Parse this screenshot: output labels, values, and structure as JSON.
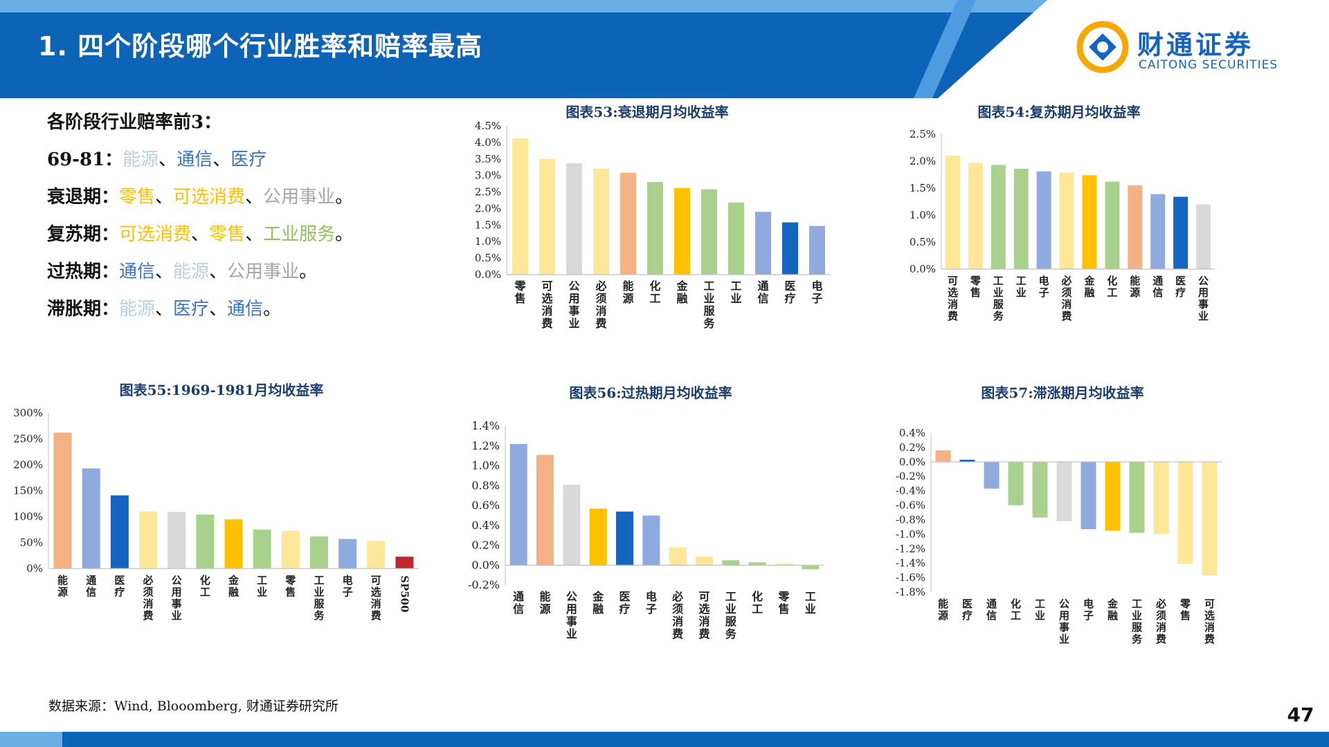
{
  "header": {
    "title": "1. 四个阶段哪个行业胜率和赔率最高"
  },
  "logo": {
    "cn": "财通证券",
    "en": "CAITONG SECURITIES"
  },
  "colors": {
    "brand_blue": "#0d63b5",
    "light_blue": "#6aaee6",
    "text_yellow": "#ffc000",
    "text_green": "#92c05a",
    "text_gray": "#a6a6a6",
    "text_lightblue": "#b4cfe9",
    "text_blue": "#3873c6"
  },
  "summary": {
    "heading": "各阶段行业赔率前3：",
    "rows": [
      {
        "label": "69-81：",
        "items": [
          {
            "text": "能源",
            "color": "#b4cfe9"
          },
          {
            "text": "通信",
            "color": "#3873c6"
          },
          {
            "text": "医疗",
            "color": "#3873c6"
          }
        ],
        "end": ""
      },
      {
        "label": "衰退期：",
        "items": [
          {
            "text": "零售",
            "color": "#ffc000"
          },
          {
            "text": "可选消费",
            "color": "#ffc000"
          },
          {
            "text": "公用事业",
            "color": "#a6a6a6"
          }
        ],
        "end": "。"
      },
      {
        "label": "复苏期：",
        "items": [
          {
            "text": "可选消费",
            "color": "#ffc000"
          },
          {
            "text": "零售",
            "color": "#ffc000"
          },
          {
            "text": "工业服务",
            "color": "#92c05a"
          }
        ],
        "end": "。"
      },
      {
        "label": "过热期：",
        "items": [
          {
            "text": "通信",
            "color": "#3873c6"
          },
          {
            "text": "能源",
            "color": "#b4cfe9"
          },
          {
            "text": "公用事业",
            "color": "#a6a6a6"
          }
        ],
        "end": "。"
      },
      {
        "label": "滞胀期：",
        "items": [
          {
            "text": "能源",
            "color": "#b4cfe9"
          },
          {
            "text": "医疗",
            "color": "#3873c6"
          },
          {
            "text": "通信",
            "color": "#3873c6"
          }
        ],
        "end": "。"
      }
    ]
  },
  "chart_data": [
    {
      "id": "c53",
      "type": "bar",
      "title": "图表53:衰退期月均收益率",
      "categories": [
        "零售",
        "可选消费",
        "公用事业",
        "必须消费",
        "能源",
        "化工",
        "金融",
        "工业服务",
        "工业",
        "通信",
        "医疗",
        "电子"
      ],
      "values": [
        4.12,
        3.5,
        3.37,
        3.2,
        3.08,
        2.8,
        2.62,
        2.58,
        2.18,
        1.9,
        1.58,
        1.47
      ],
      "colors": [
        "#ffe699",
        "#ffe699",
        "#d9d9d9",
        "#ffe699",
        "#f4b183",
        "#a9d18e",
        "#ffc000",
        "#a9d18e",
        "#a9d18e",
        "#8faadc",
        "#1565c0",
        "#8faadc"
      ],
      "ylim": [
        0,
        4.5
      ],
      "yticks": [
        "0.0%",
        "0.5%",
        "1.0%",
        "1.5%",
        "2.0%",
        "2.5%",
        "3.0%",
        "3.5%",
        "4.0%",
        "4.5%"
      ],
      "grid": false
    },
    {
      "id": "c54",
      "type": "bar",
      "title": "图表54:复苏期月均收益率",
      "categories": [
        "可选消费",
        "零售",
        "工业服务",
        "工业",
        "电子",
        "必须消费",
        "金融",
        "化工",
        "能源",
        "通信",
        "医疗",
        "公用事业"
      ],
      "values": [
        2.1,
        1.97,
        1.93,
        1.86,
        1.81,
        1.79,
        1.74,
        1.62,
        1.55,
        1.39,
        1.34,
        1.2
      ],
      "colors": [
        "#ffe699",
        "#ffe699",
        "#a9d18e",
        "#a9d18e",
        "#8faadc",
        "#ffe699",
        "#ffc000",
        "#a9d18e",
        "#f4b183",
        "#8faadc",
        "#1565c0",
        "#d9d9d9"
      ],
      "ylim": [
        0,
        2.5
      ],
      "yticks": [
        "0.0%",
        "0.5%",
        "1.0%",
        "1.5%",
        "2.0%",
        "2.5%"
      ],
      "grid": false
    },
    {
      "id": "c55",
      "type": "bar",
      "title": "图表55:1969-1981月均收益率",
      "categories": [
        "能源",
        "通信",
        "医疗",
        "必须消费",
        "公用事业",
        "化工",
        "金融",
        "工业",
        "零售",
        "工业服务",
        "电子",
        "可选消费",
        "SP500"
      ],
      "values": [
        262,
        193,
        141,
        110,
        109,
        104,
        95,
        75,
        73,
        62,
        57,
        53,
        23
      ],
      "colors": [
        "#f4b183",
        "#8faadc",
        "#1565c0",
        "#ffe699",
        "#d9d9d9",
        "#a9d18e",
        "#ffc000",
        "#a9d18e",
        "#ffe699",
        "#a9d18e",
        "#8faadc",
        "#ffe699",
        "#c0272d"
      ],
      "ylim": [
        0,
        300
      ],
      "yticks": [
        "0%",
        "50%",
        "100%",
        "150%",
        "200%",
        "250%",
        "300%"
      ],
      "grid": false
    },
    {
      "id": "c56",
      "type": "bar",
      "title": "图表56:过热期月均收益率",
      "categories": [
        "通信",
        "能源",
        "公用事业",
        "金融",
        "医疗",
        "电子",
        "必须消费",
        "可选消费",
        "工业服务",
        "化工",
        "零售",
        "工业"
      ],
      "values": [
        1.22,
        1.11,
        0.81,
        0.57,
        0.54,
        0.5,
        0.18,
        0.09,
        0.05,
        0.03,
        0.02,
        -0.04
      ],
      "colors": [
        "#8faadc",
        "#f4b183",
        "#d9d9d9",
        "#ffc000",
        "#1565c0",
        "#8faadc",
        "#ffe699",
        "#ffe699",
        "#a9d18e",
        "#a9d18e",
        "#ffe699",
        "#a9d18e"
      ],
      "ylim": [
        -0.2,
        1.4
      ],
      "yticks": [
        "-0.2%",
        "0.0%",
        "0.2%",
        "0.4%",
        "0.6%",
        "0.8%",
        "1.0%",
        "1.2%",
        "1.4%"
      ],
      "grid": false
    },
    {
      "id": "c57",
      "type": "bar",
      "title": "图表57:滞涨期月均收益率",
      "categories": [
        "能源",
        "医疗",
        "通信",
        "化工",
        "工业",
        "公用事业",
        "电子",
        "金融",
        "工业服务",
        "必须消费",
        "零售",
        "可选消费"
      ],
      "values": [
        0.16,
        0.03,
        -0.37,
        -0.6,
        -0.77,
        -0.82,
        -0.93,
        -0.95,
        -0.98,
        -1.0,
        -1.41,
        -1.57
      ],
      "colors": [
        "#f4b183",
        "#1565c0",
        "#8faadc",
        "#a9d18e",
        "#a9d18e",
        "#d9d9d9",
        "#8faadc",
        "#ffc000",
        "#a9d18e",
        "#ffe699",
        "#ffe699",
        "#ffe699"
      ],
      "ylim": [
        -1.8,
        0.4
      ],
      "yticks": [
        "-1.8%",
        "-1.6%",
        "-1.4%",
        "-1.2%",
        "-1.0%",
        "-0.8%",
        "-0.6%",
        "-0.4%",
        "-0.2%",
        "0.0%",
        "0.2%",
        "0.4%"
      ],
      "grid": false
    }
  ],
  "footer": {
    "source": "数据来源：Wind, Blooomberg, 财通证券研究所",
    "page": "47"
  }
}
